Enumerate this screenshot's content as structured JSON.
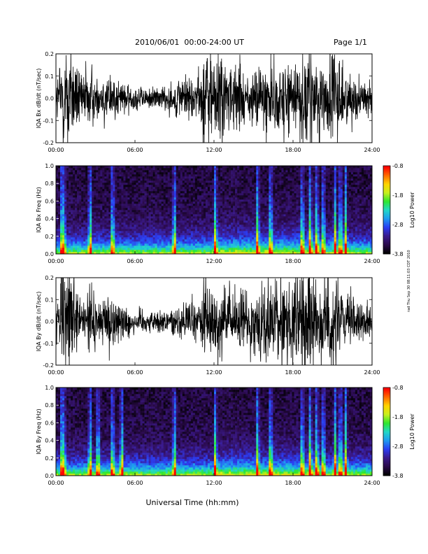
{
  "header": {
    "title": "2010/06/01  00:00-24:00 UT",
    "page": "Page 1/1"
  },
  "stamp": "rad Thu Sep 30 08:11:03 CDT 2010",
  "xlabel": "Universal Time (hh:mm)",
  "colors": {
    "trace": "#000000",
    "colormap": [
      "#000000",
      "#2a0a4a",
      "#3a1a8c",
      "#2b3cf2",
      "#1f9bf0",
      "#22d8c8",
      "#2ee62e",
      "#c8f01e",
      "#ffd400",
      "#ff6a00",
      "#ff0000"
    ]
  },
  "chart_data": [
    {
      "type": "line",
      "title": "",
      "ylabel": "IQA Bx dB/dt (nT/sec)",
      "xlabel": "",
      "x_ticks": [
        "00:00",
        "06:00",
        "12:00",
        "18:00",
        "24:00"
      ],
      "xlim": [
        0,
        24
      ],
      "ylim": [
        -0.2,
        0.2
      ],
      "y_ticks": [
        "-0.2",
        "-0.1",
        "0.0",
        "0.1",
        "0.2"
      ],
      "series": [
        {
          "x": [
            0,
            0.5,
            1,
            1.5,
            2,
            2.5,
            3,
            3.5,
            4,
            4.5,
            5,
            5.5,
            6,
            6.5,
            7,
            7.5,
            8,
            8.5,
            9,
            9.5,
            10,
            10.5,
            11,
            11.5,
            12,
            12.5,
            13,
            13.5,
            14,
            14.5,
            15,
            15.5,
            16,
            16.5,
            17,
            17.5,
            18,
            18.5,
            19,
            19.5,
            20,
            20.5,
            21,
            21.5,
            22,
            22.5,
            23,
            23.5,
            24
          ],
          "amplitude": [
            0.06,
            0.2,
            0.2,
            0.12,
            0.09,
            0.14,
            0.08,
            0.07,
            0.1,
            0.07,
            0.06,
            0.05,
            0.05,
            0.05,
            0.04,
            0.04,
            0.05,
            0.05,
            0.06,
            0.07,
            0.08,
            0.09,
            0.12,
            0.2,
            0.18,
            0.2,
            0.12,
            0.11,
            0.13,
            0.1,
            0.1,
            0.12,
            0.16,
            0.11,
            0.13,
            0.15,
            0.16,
            0.14,
            0.2,
            0.17,
            0.14,
            0.13,
            0.2,
            0.14,
            0.1,
            0.09,
            0.08,
            0.06,
            0.05
          ]
        }
      ]
    },
    {
      "type": "heatmap",
      "title": "",
      "ylabel": "IQA Bx Freq (Hz)",
      "xlabel": "",
      "x_ticks": [
        "00:00",
        "06:00",
        "12:00",
        "18:00",
        "24:00"
      ],
      "xlim": [
        0,
        24
      ],
      "ylim": [
        0,
        1
      ],
      "y_ticks": [
        "0.0",
        "0.2",
        "0.4",
        "0.6",
        "0.8",
        "1.0"
      ],
      "colorbar": {
        "label": "Log10 Power",
        "ticks": [
          "-0.8",
          "-1.8",
          "-2.8",
          "-3.8"
        ],
        "range": [
          -3.8,
          -0.8
        ]
      },
      "bursts_hours": [
        0.45,
        0.6,
        2.6,
        4.3,
        9.0,
        12.1,
        15.3,
        16.3,
        18.7,
        19.3,
        19.8,
        20.3,
        21.2,
        21.6,
        22.0
      ]
    },
    {
      "type": "line",
      "title": "",
      "ylabel": "IQA By dB/dt (nT/sec)",
      "xlabel": "",
      "x_ticks": [
        "00:00",
        "06:00",
        "12:00",
        "18:00",
        "24:00"
      ],
      "xlim": [
        0,
        24
      ],
      "ylim": [
        -0.2,
        0.2
      ],
      "y_ticks": [
        "-0.2",
        "-0.1",
        "0.0",
        "0.1",
        "0.2"
      ],
      "series": [
        {
          "x": [
            0,
            0.5,
            1,
            1.5,
            2,
            2.5,
            3,
            3.5,
            4,
            4.5,
            5,
            5.5,
            6,
            6.5,
            7,
            7.5,
            8,
            8.5,
            9,
            9.5,
            10,
            10.5,
            11,
            11.5,
            12,
            12.5,
            13,
            13.5,
            14,
            14.5,
            15,
            15.5,
            16,
            16.5,
            17,
            17.5,
            18,
            18.5,
            19,
            19.5,
            20,
            20.5,
            21,
            21.5,
            22,
            22.5,
            23,
            23.5,
            24
          ],
          "amplitude": [
            0.06,
            0.2,
            0.2,
            0.12,
            0.08,
            0.13,
            0.1,
            0.08,
            0.12,
            0.08,
            0.07,
            0.06,
            0.05,
            0.05,
            0.04,
            0.04,
            0.05,
            0.05,
            0.06,
            0.07,
            0.07,
            0.08,
            0.12,
            0.16,
            0.14,
            0.15,
            0.12,
            0.1,
            0.12,
            0.1,
            0.11,
            0.13,
            0.17,
            0.14,
            0.15,
            0.16,
            0.18,
            0.16,
            0.2,
            0.18,
            0.16,
            0.15,
            0.2,
            0.14,
            0.1,
            0.09,
            0.07,
            0.06,
            0.05
          ]
        }
      ]
    },
    {
      "type": "heatmap",
      "title": "",
      "ylabel": "IQA By Freq (Hz)",
      "xlabel": "",
      "x_ticks": [
        "00:00",
        "06:00",
        "12:00",
        "18:00",
        "24:00"
      ],
      "xlim": [
        0,
        24
      ],
      "ylim": [
        0,
        1
      ],
      "y_ticks": [
        "0.0",
        "0.2",
        "0.4",
        "0.6",
        "0.8",
        "1.0"
      ],
      "colorbar": {
        "label": "Log10 Power",
        "ticks": [
          "-0.8",
          "-1.8",
          "-2.8",
          "-3.8"
        ],
        "range": [
          -3.8,
          -0.8
        ]
      },
      "bursts_hours": [
        0.45,
        0.6,
        2.6,
        3.2,
        4.3,
        5.0,
        9.0,
        12.1,
        15.3,
        16.3,
        18.7,
        19.3,
        19.8,
        20.3,
        21.2,
        21.6,
        22.0
      ]
    }
  ]
}
